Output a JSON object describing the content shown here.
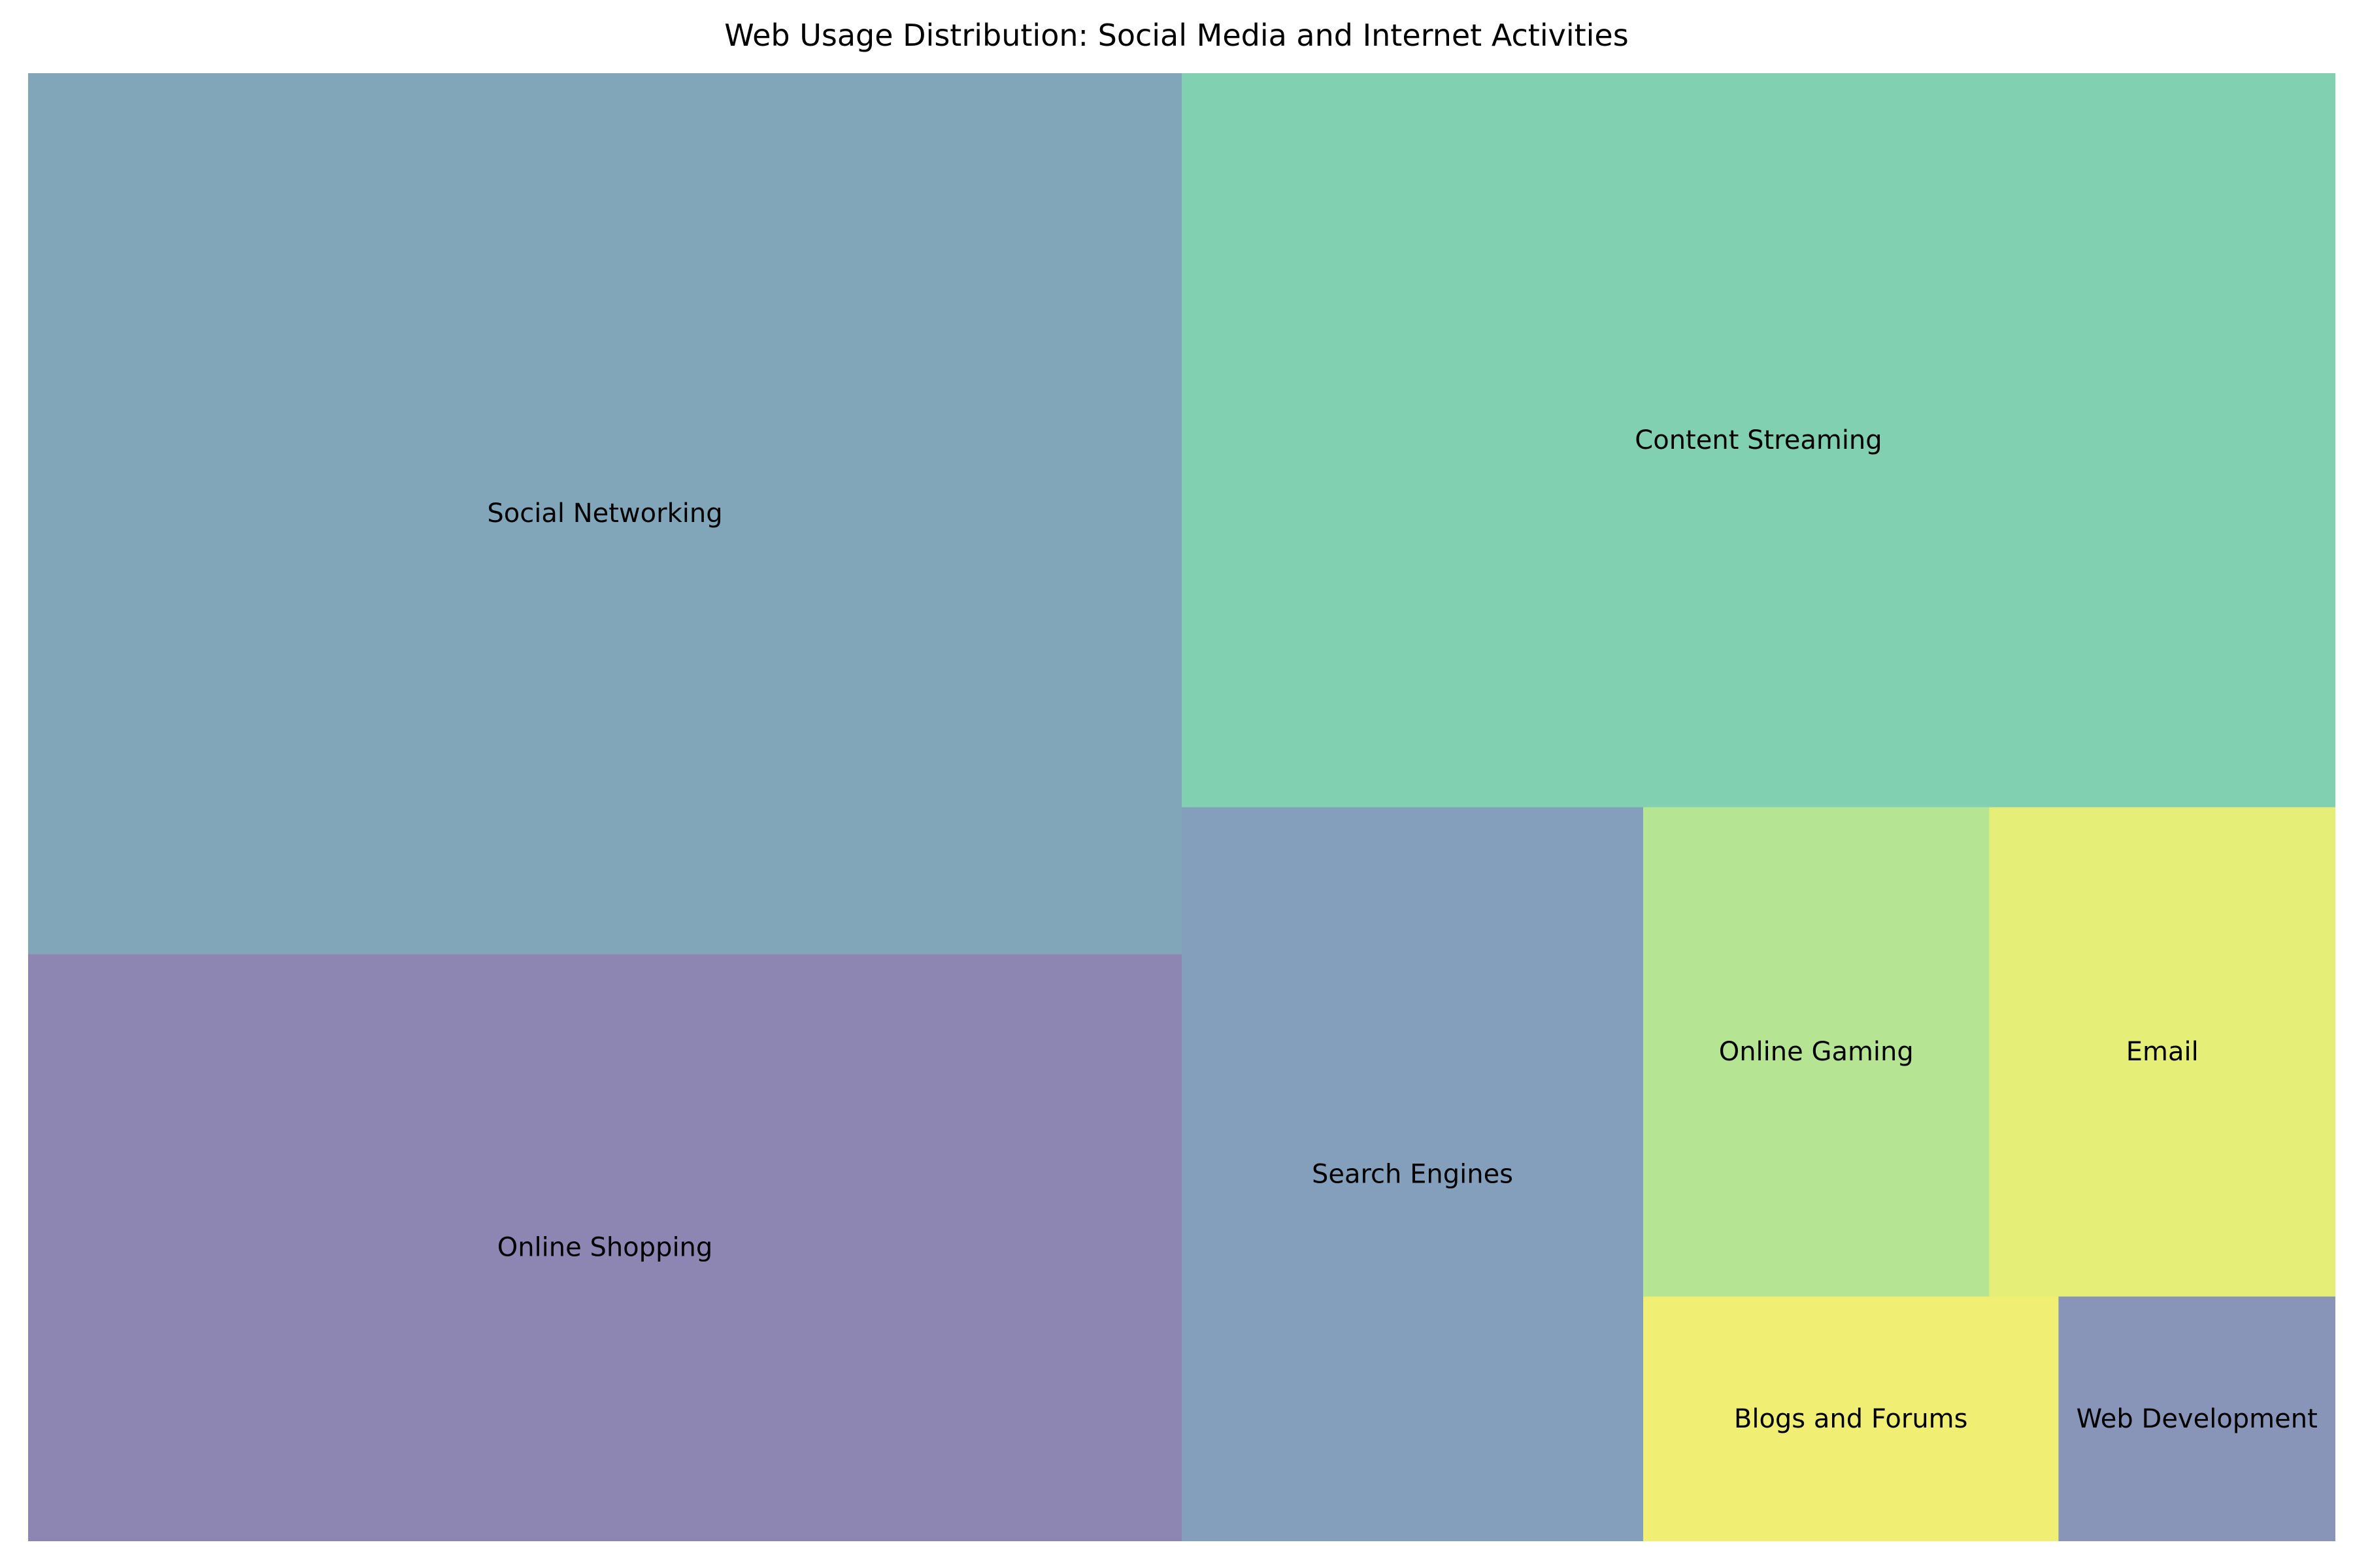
{
  "chart_data": {
    "type": "treemap",
    "title": "Web Usage Distribution: Social Media and Internet Activities",
    "alpha": 0.6,
    "items": [
      {
        "label": "Social Networking",
        "value": 30,
        "color": "#2e6a8a"
      },
      {
        "label": "Online Shopping",
        "value": 20,
        "color": "#43357f"
      },
      {
        "label": "Content Streaming",
        "value": 25,
        "color": "#2cb07d"
      },
      {
        "label": "Search Engines",
        "value": 10,
        "color": "#325f8d"
      },
      {
        "label": "Online Gaming",
        "value": 5,
        "color": "#84d44b"
      },
      {
        "label": "Email",
        "value": 5,
        "color": "#d4e21a"
      },
      {
        "label": "Blogs and Forums",
        "value": 3,
        "color": "#e8e515"
      },
      {
        "label": "Web Development",
        "value": 2,
        "color": "#394f8b"
      }
    ]
  }
}
